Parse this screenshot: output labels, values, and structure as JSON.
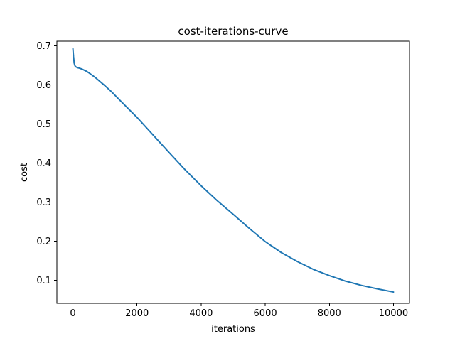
{
  "chart_data": {
    "type": "line",
    "title": "cost-iterations-curve",
    "xlabel": "iterations",
    "ylabel": "cost",
    "xlim": [
      -500,
      10500
    ],
    "ylim": [
      0.041,
      0.712
    ],
    "xticks": [
      0,
      2000,
      4000,
      6000,
      8000,
      10000
    ],
    "yticks": [
      0.1,
      0.2,
      0.3,
      0.4,
      0.5,
      0.6,
      0.7
    ],
    "grid": false,
    "legend": "none",
    "colors": {
      "series": "#1f77b4"
    },
    "series": [
      {
        "x": [
          0,
          20,
          40,
          60,
          80,
          100,
          150,
          200,
          300,
          400,
          500,
          600,
          700,
          800,
          1000,
          1200,
          1500,
          2000,
          2500,
          3000,
          3500,
          4000,
          4500,
          5000,
          5500,
          6000,
          6500,
          7000,
          7500,
          8000,
          8500,
          9000,
          9500,
          10000
        ],
        "values": [
          0.693,
          0.672,
          0.656,
          0.65,
          0.647,
          0.646,
          0.644,
          0.643,
          0.64,
          0.636,
          0.631,
          0.625,
          0.619,
          0.612,
          0.598,
          0.583,
          0.558,
          0.517,
          0.472,
          0.427,
          0.383,
          0.342,
          0.304,
          0.269,
          0.233,
          0.199,
          0.171,
          0.148,
          0.128,
          0.112,
          0.098,
          0.087,
          0.078,
          0.07
        ]
      }
    ]
  }
}
